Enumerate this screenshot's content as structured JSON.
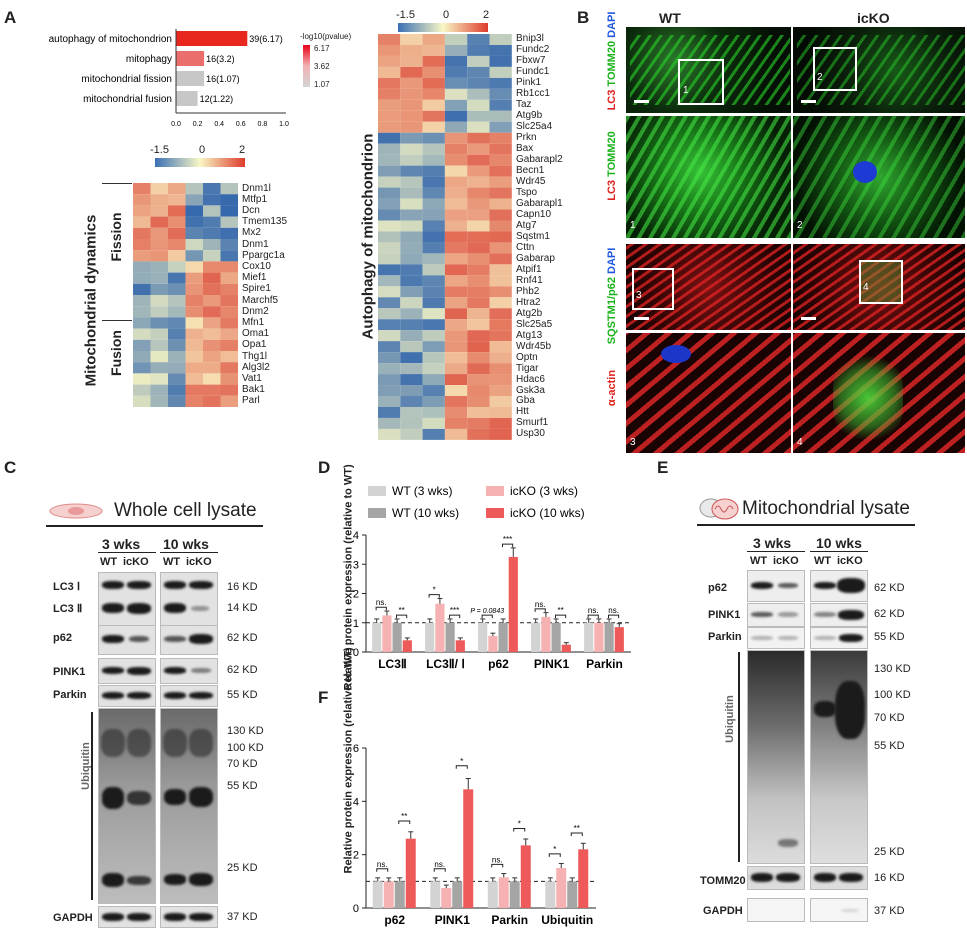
{
  "panel_labels": {
    "a": "A",
    "b": "B",
    "c": "C",
    "d": "D",
    "e": "E",
    "f": "F"
  },
  "go_enrichment": {
    "legend_title": "-log10(pvalue)",
    "legend_ticks": [
      "6.17",
      "3.62",
      "1.07"
    ],
    "x_ticks": [
      "0.0",
      "0.2",
      "0.4",
      "0.6",
      "0.8",
      "1.0"
    ],
    "terms": [
      {
        "label": "autophagy of mitochondrion",
        "count_label": "39(6.17)",
        "ratio": 0.66,
        "color": "#e8281f"
      },
      {
        "label": "mitophagy",
        "count_label": "16(3.2)",
        "ratio": 0.26,
        "color": "#ea6f6c"
      },
      {
        "label": "mitochondrial fission",
        "count_label": "16(1.07)",
        "ratio": 0.26,
        "color": "#c7c7c7"
      },
      {
        "label": "mitochondrial fusion",
        "count_label": "12(1.22)",
        "ratio": 0.2,
        "color": "#c7c7c7"
      }
    ]
  },
  "heatmap_dyn": {
    "scale": [
      "-1.5",
      "0",
      "2"
    ],
    "title": "Mitochondrial dynamics",
    "fission_label": "Fission",
    "fusion_label": "Fusion",
    "genes": [
      "Dnm1l",
      "Mtfp1",
      "Dcn",
      "Tmem135",
      "Mx2",
      "Dnm1",
      "Ppargc1a",
      "Cox10",
      "Mief1",
      "Spire1",
      "Marchf5",
      "Dnm2",
      "Mfn1",
      "Oma1",
      "Opa1",
      "Thg1l",
      "Alg3l2",
      "Vat1",
      "Bak1",
      "Parl"
    ]
  },
  "heatmap_auto": {
    "scale": [
      "-1.5",
      "0",
      "2"
    ],
    "title": "Autophagy of mitochondrion",
    "genes": [
      "Bnip3l",
      "Fundc2",
      "Fbxw7",
      "Fundc1",
      "Pink1",
      "Rb1cc1",
      "Taz",
      "Atg9b",
      "Slc25a4",
      "Prkn",
      "Bax",
      "Gabarapl2",
      "Becn1",
      "Wdr45",
      "Tspo",
      "Gabarapl1",
      "Capn10",
      "Atg7",
      "Sqstm1",
      "Cttn",
      "Gabarap",
      "Atpif1",
      "Rnf41",
      "Phb2",
      "Htra2",
      "Atg2b",
      "Slc25a5",
      "Atg13",
      "Wdr45b",
      "Optn",
      "Tigar",
      "Hdac6",
      "Gsk3a",
      "Gba",
      "Htt",
      "Smurf1",
      "Usp30"
    ]
  },
  "panel_b": {
    "col_wt": "WT",
    "col_icko": "icKO",
    "row1_stain": {
      "a": "LC3",
      "b": "TOMM20",
      "c": "DAPI"
    },
    "row2_stain": {
      "a": "α-actin",
      "b": "SQSTM1/p62",
      "c": "DAPI"
    },
    "insets": [
      "1",
      "2",
      "3",
      "4"
    ]
  },
  "panel_c": {
    "title": "Whole cell lysate",
    "timepoints": [
      "3 wks",
      "10 wks"
    ],
    "genotypes": [
      "WT",
      "icKO",
      "WT",
      "icKO"
    ],
    "rows": [
      "LC3 Ⅰ",
      "LC3 Ⅱ",
      "p62",
      "PINK1",
      "Parkin",
      "Ubiquitin",
      "GAPDH"
    ],
    "kd": [
      "16 KD",
      "14 KD",
      "62 KD",
      "62 KD",
      "55 KD",
      "130 KD",
      "100 KD",
      "70 KD",
      "55 KD",
      "25 KD",
      "37 KD"
    ]
  },
  "panel_e": {
    "title": "Mitochondrial lysate",
    "timepoints": [
      "3 wks",
      "10 wks"
    ],
    "genotypes": [
      "WT",
      "icKO",
      "WT",
      "icKO"
    ],
    "rows": [
      "p62",
      "PINK1",
      "Parkin",
      "Ubiquitin",
      "TOMM20",
      "GAPDH"
    ],
    "kd": [
      "62 KD",
      "62 KD",
      "55 KD",
      "130 KD",
      "100 KD",
      "70 KD",
      "55 KD",
      "25 KD",
      "16 KD",
      "37 KD"
    ]
  },
  "chart_data": [
    {
      "type": "bar",
      "panel": "D",
      "ylabel": "Relative protein expression (relative to WT)",
      "ylim": [
        0,
        4
      ],
      "y_ticks": [
        "0",
        "1",
        "2",
        "3",
        "4"
      ],
      "categories": [
        "LC3Ⅱ",
        "LC3Ⅱ/ Ⅰ",
        "p62",
        "PINK1",
        "Parkin"
      ],
      "series": [
        {
          "name": "WT (3 wks)",
          "color": "#d3d3d3",
          "values": [
            1.0,
            1.0,
            1.0,
            1.0,
            1.0
          ]
        },
        {
          "name": "icKO (3 wks)",
          "color": "#f6b2b2",
          "values": [
            1.25,
            1.65,
            0.55,
            1.2,
            1.0
          ]
        },
        {
          "name": "WT (10 wks)",
          "color": "#a5a5a5",
          "values": [
            1.0,
            1.0,
            1.0,
            1.0,
            1.0
          ]
        },
        {
          "name": "icKO (10 wks)",
          "color": "#ee5a5a",
          "values": [
            0.4,
            0.4,
            3.25,
            0.25,
            0.85
          ]
        }
      ],
      "annotations": [
        "ns.",
        "**",
        "*",
        "***",
        "P = 0.0843",
        "***",
        "ns.",
        "**",
        "ns.",
        "ns."
      ]
    },
    {
      "type": "bar",
      "panel": "F",
      "ylabel": "Relative protein expression (relative to WT)",
      "ylim": [
        0,
        6
      ],
      "y_ticks": [
        "0",
        "2",
        "4",
        "6"
      ],
      "categories": [
        "p62",
        "PINK1",
        "Parkin",
        "Ubiquitin"
      ],
      "series": [
        {
          "name": "WT (3 wks)",
          "color": "#d3d3d3",
          "values": [
            1.0,
            1.0,
            1.0,
            1.0
          ]
        },
        {
          "name": "icKO (3 wks)",
          "color": "#f6b2b2",
          "values": [
            1.0,
            0.75,
            1.15,
            1.5
          ]
        },
        {
          "name": "WT (10 wks)",
          "color": "#a5a5a5",
          "values": [
            1.0,
            1.0,
            1.0,
            1.0
          ]
        },
        {
          "name": "icKO (10 wks)",
          "color": "#ee5a5a",
          "values": [
            2.6,
            4.45,
            2.35,
            2.2
          ]
        }
      ],
      "annotations": [
        "ns.",
        "**",
        "ns.",
        "*",
        "ns.",
        "*",
        "*",
        "**"
      ]
    }
  ]
}
